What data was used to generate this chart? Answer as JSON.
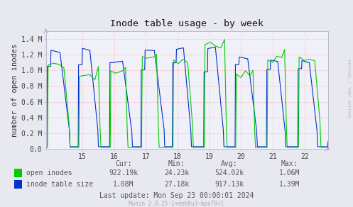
{
  "title": "Inode table usage - by week",
  "ylabel": "number of open inodes",
  "xmin": 13.85,
  "xmax": 22.75,
  "ymin": 0.0,
  "ymax": 1500000.0,
  "ytick_vals": [
    0,
    200000,
    400000,
    600000,
    800000,
    1000000,
    1200000,
    1400000
  ],
  "ytick_labels": [
    "0.0",
    "0.2 M",
    "0.4 M",
    "0.6 M",
    "0.8 M",
    "1.0 M",
    "1.2 M",
    "1.4 M"
  ],
  "xtick_positions": [
    15,
    16,
    17,
    18,
    19,
    20,
    21,
    22
  ],
  "xtick_labels": [
    "15",
    "16",
    "17",
    "18",
    "19",
    "20",
    "21",
    "22"
  ],
  "bg_color": "#e8e8f0",
  "plot_bg_color": "#f0f0f8",
  "grid_color": "#ffaaaa",
  "green_color": "#00cc00",
  "blue_color": "#0033cc",
  "light_blue_color": "#6699ff",
  "legend_green": "open inodes",
  "legend_blue": "inode table size",
  "cur_green": "922.19k",
  "min_green": "24.23k",
  "avg_green": "524.02k",
  "max_green": "1.06M",
  "cur_blue": "1.08M",
  "min_blue": "27.18k",
  "avg_blue": "917.13k",
  "max_blue": "1.39M",
  "last_update": "Last update: Mon Sep 23 00:00:01 2024",
  "munin_text": "Munin 2.0.25-1+deb8u3~bpo70+1",
  "watermark": "RRDTOOL / TOBI OETIKER"
}
